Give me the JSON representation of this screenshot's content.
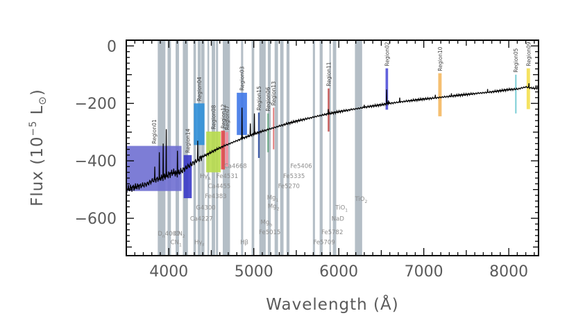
{
  "colors": {
    "index_band": "#b4bec6",
    "spectrum": "#000000",
    "axis": "#000000",
    "text": "#5a5a5a",
    "index_text": "#8c8c8c"
  },
  "chart_data": {
    "type": "line",
    "xlabel": "Wavelength (Å)",
    "ylabel_prefix": "Flux (10",
    "ylabel_exp": "−5",
    "ylabel_unit": " L",
    "ylabel_sun": "⊙",
    "ylabel_suffix": ")",
    "xlim": [
      3500,
      8350
    ],
    "ylim": [
      -730,
      20
    ],
    "x_ticks": [
      {
        "value": 4000,
        "label": "4000"
      },
      {
        "value": 5000,
        "label": "5000"
      },
      {
        "value": 6000,
        "label": "6000"
      },
      {
        "value": 7000,
        "label": "7000"
      },
      {
        "value": 8000,
        "label": "8000"
      }
    ],
    "y_ticks": [
      {
        "value": 0,
        "label": "0"
      },
      {
        "value": -200,
        "label": "−200"
      },
      {
        "value": -400,
        "label": "−400"
      },
      {
        "value": -600,
        "label": "−600"
      }
    ],
    "grid": false,
    "legend": "none",
    "series": [
      {
        "x": [
          3500,
          3550,
          3600,
          3650,
          3700,
          3750,
          3800,
          3850,
          3900,
          3950,
          4000,
          4050,
          4100,
          4150,
          4200,
          4250,
          4300,
          4350,
          4400,
          4450,
          4500,
          4550,
          4600,
          4650,
          4700,
          4800,
          4900,
          5000,
          5100,
          5200,
          5300,
          5400,
          5500,
          5600,
          5700,
          5800,
          5900,
          6000,
          6100,
          6200,
          6300,
          6400,
          6500,
          6600,
          6800,
          7000,
          7200,
          7400,
          7600,
          7800,
          8000,
          8100,
          8200,
          8300,
          8350
        ],
        "y": [
          -500,
          -495,
          -492,
          -488,
          -485,
          -480,
          -470,
          -465,
          -460,
          -455,
          -448,
          -440,
          -445,
          -435,
          -425,
          -415,
          -405,
          -395,
          -385,
          -378,
          -370,
          -362,
          -355,
          -348,
          -342,
          -330,
          -318,
          -307,
          -297,
          -288,
          -279,
          -270,
          -262,
          -255,
          -248,
          -241,
          -235,
          -229,
          -224,
          -219,
          -214,
          -209,
          -205,
          -200,
          -192,
          -185,
          -179,
          -172,
          -166,
          -160,
          -152,
          -150,
          -143,
          -148,
          -145
        ]
      }
    ],
    "emission_peaks": [
      {
        "x": 3835,
        "y": -420
      },
      {
        "x": 3889,
        "y": -370
      },
      {
        "x": 3934,
        "y": -340
      },
      {
        "x": 3970,
        "y": -290
      },
      {
        "x": 4102,
        "y": -365
      },
      {
        "x": 4340,
        "y": -330
      },
      {
        "x": 4861,
        "y": -215
      },
      {
        "x": 4959,
        "y": -270
      },
      {
        "x": 5007,
        "y": -235
      },
      {
        "x": 5876,
        "y": -220
      },
      {
        "x": 6300,
        "y": -205
      },
      {
        "x": 6563,
        "y": -152
      },
      {
        "x": 6584,
        "y": -190
      },
      {
        "x": 6717,
        "y": -180
      },
      {
        "x": 7136,
        "y": -170
      },
      {
        "x": 7325,
        "y": -165
      },
      {
        "x": 7751,
        "y": -150
      },
      {
        "x": 8237,
        "y": -130
      }
    ],
    "index_bands": [
      [
        3870,
        3960
      ],
      [
        3985,
        4025
      ],
      [
        4080,
        4120
      ],
      [
        4165,
        4225
      ],
      [
        4290,
        4320
      ],
      [
        4340,
        4375
      ],
      [
        4380,
        4420
      ],
      [
        4455,
        4475
      ],
      [
        4505,
        4545
      ],
      [
        4555,
        4580
      ],
      [
        4635,
        4720
      ],
      [
        4850,
        4875
      ],
      [
        4975,
        5005
      ],
      [
        5065,
        5140
      ],
      [
        5165,
        5200
      ],
      [
        5245,
        5285
      ],
      [
        5310,
        5350
      ],
      [
        5385,
        5420
      ],
      [
        5695,
        5720
      ],
      [
        5775,
        5810
      ],
      [
        5890,
        5900
      ],
      [
        5930,
        5970
      ],
      [
        6190,
        6275
      ]
    ],
    "regions": [
      {
        "label": "Region01",
        "x0": 3500,
        "x1": 4150,
        "y0": -505,
        "y1": -348,
        "color": "#6f6fd2"
      },
      {
        "label": "Region14",
        "x0": 4175,
        "x1": 4270,
        "y0": -530,
        "y1": -380,
        "color": "#3a3ac8"
      },
      {
        "label": "Region04",
        "x0": 4295,
        "x1": 4420,
        "y0": -345,
        "y1": -200,
        "color": "#2f8fd8"
      },
      {
        "label": "Region08",
        "x0": 4440,
        "x1": 4610,
        "y0": -440,
        "y1": -298,
        "color": "#b8dc4c"
      },
      {
        "label": "Region12",
        "x0": 4615,
        "x1": 4660,
        "y0": -430,
        "y1": -295,
        "color": "#e04848"
      },
      {
        "label": "Region07",
        "x0": 4665,
        "x1": 4700,
        "y0": -420,
        "y1": -300,
        "color": "#f58ea0"
      },
      {
        "label": "Region03",
        "x0": 4800,
        "x1": 4920,
        "y0": -310,
        "y1": -163,
        "color": "#3f78e8"
      },
      {
        "label": "Region15",
        "x0": 5050,
        "x1": 5070,
        "y0": -390,
        "y1": -232,
        "color": "#3050a0"
      },
      {
        "label": "Region06",
        "x0": 5160,
        "x1": 5175,
        "y0": -370,
        "y1": -235,
        "color": "#5aa078"
      },
      {
        "label": "Region13",
        "x0": 5225,
        "x1": 5240,
        "y0": -360,
        "y1": -215,
        "color": "#e07070"
      },
      {
        "label": "Region11",
        "x0": 5870,
        "x1": 5890,
        "y0": -298,
        "y1": -148,
        "color": "#c04a4a"
      },
      {
        "label": "Region02",
        "x0": 6550,
        "x1": 6580,
        "y0": -222,
        "y1": -78,
        "color": "#5050d8"
      },
      {
        "label": "Region10",
        "x0": 7170,
        "x1": 7210,
        "y0": -245,
        "y1": -95,
        "color": "#f4b860"
      },
      {
        "label": "Region05",
        "x0": 8075,
        "x1": 8090,
        "y0": -235,
        "y1": -100,
        "color": "#6cc8d0"
      },
      {
        "label": "Region09",
        "x0": 8210,
        "x1": 8250,
        "y0": -220,
        "y1": -78,
        "color": "#f4e050"
      }
    ],
    "index_labels": [
      {
        "text": "Ca4668",
        "x": 4650,
        "y": -425
      },
      {
        "text": "Hγ",
        "sub": "A",
        "x": 4365,
        "y": -460
      },
      {
        "text": "Fe4531",
        "x": 4560,
        "y": -460
      },
      {
        "text": "Ca4455",
        "x": 4460,
        "y": -495
      },
      {
        "text": "Fe4383",
        "x": 4425,
        "y": -530
      },
      {
        "text": "G4300",
        "x": 4320,
        "y": -570
      },
      {
        "text": "Ca4227",
        "x": 4250,
        "y": -608
      },
      {
        "text": "D",
        "sub": "n",
        "tail": "4000",
        "x": 3870,
        "y": -660
      },
      {
        "text": "CN",
        "sub": "2",
        "x": 4060,
        "y": -660
      },
      {
        "text": "CN",
        "sub": "1",
        "x": 4020,
        "y": -690
      },
      {
        "text": "Hγ",
        "sub": "F",
        "x": 4300,
        "y": -690
      },
      {
        "text": "Fe5406",
        "x": 5430,
        "y": -425
      },
      {
        "text": "Fe5335",
        "x": 5345,
        "y": -460
      },
      {
        "text": "Fe5270",
        "x": 5285,
        "y": -495
      },
      {
        "text": "Mg",
        "sub": "1",
        "x": 5155,
        "y": -535
      },
      {
        "text": "Mg",
        "sub": "2",
        "x": 5165,
        "y": -565
      },
      {
        "text": "Mg",
        "sub": "b",
        "x": 5080,
        "y": -620
      },
      {
        "text": "Fe5015",
        "x": 5060,
        "y": -655
      },
      {
        "text": "Hβ",
        "x": 4840,
        "y": -690
      },
      {
        "text": "TiO",
        "sub": "2",
        "x": 6190,
        "y": -540
      },
      {
        "text": "TiO",
        "sub": "1",
        "x": 5960,
        "y": -570
      },
      {
        "text": "NaD",
        "x": 5915,
        "y": -608
      },
      {
        "text": "Fe5782",
        "x": 5795,
        "y": -655
      },
      {
        "text": "Fe5709",
        "x": 5700,
        "y": -690
      }
    ]
  }
}
